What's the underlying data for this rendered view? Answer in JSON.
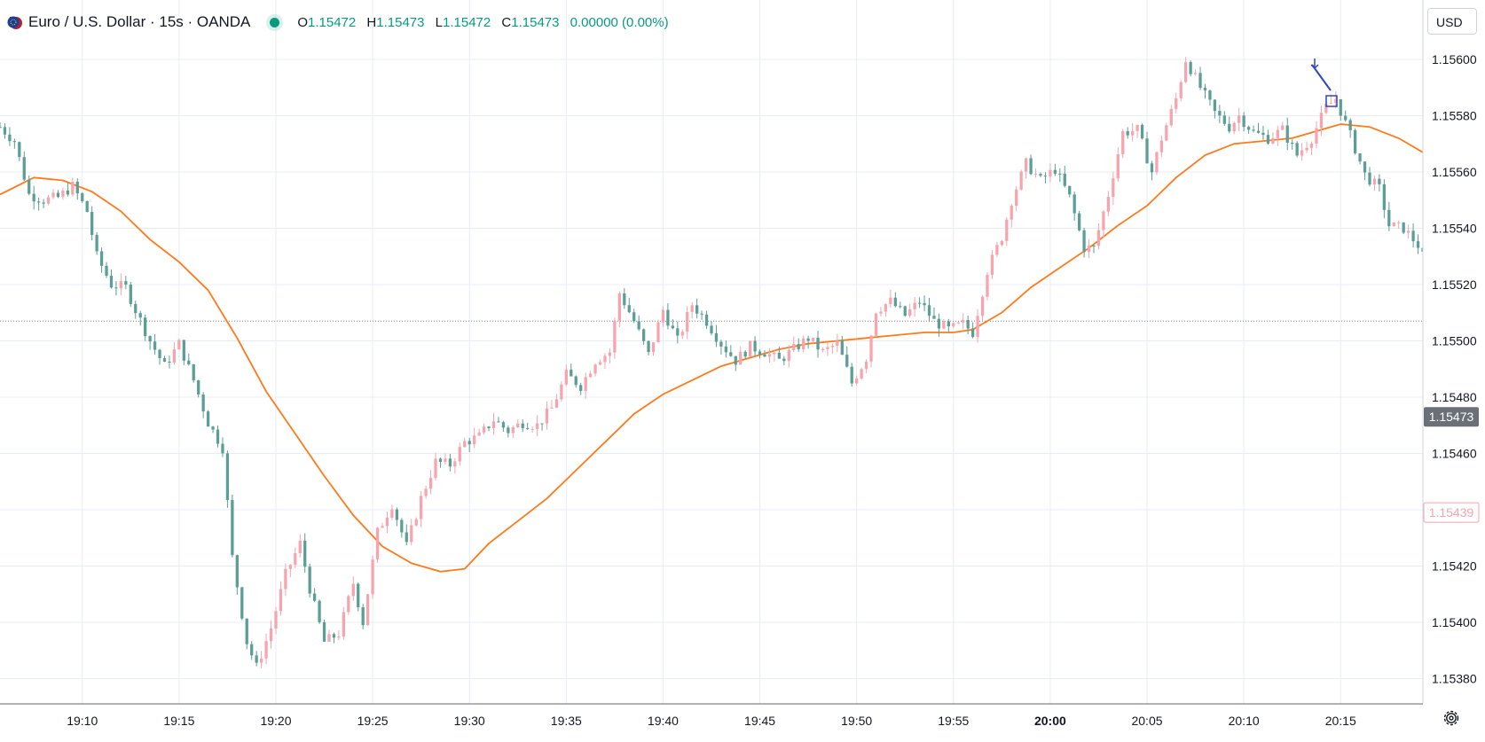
{
  "legend": {
    "symbol": "Euro / U.S. Dollar · 15s · OANDA",
    "open_key": "O",
    "open": "1.15472",
    "high_key": "H",
    "high": "1.15473",
    "low_key": "L",
    "low": "1.15472",
    "close_key": "C",
    "close": "1.15473",
    "change": "0.00000 (0.00%)"
  },
  "currency_button": "USD",
  "colors": {
    "up": "#f7a4ae",
    "down": "#5b9e96",
    "ma": "#ff7a1a",
    "grid": "#e8edf3",
    "accent": "#089981"
  },
  "chart_data": {
    "type": "candlestick",
    "interval": "15s",
    "price_axis": {
      "ticks": [
        "1.15600",
        "1.15580",
        "1.15560",
        "1.15540",
        "1.15520",
        "1.15500",
        "1.15480",
        "1.15460",
        "1.15420",
        "1.15400",
        "1.15380"
      ],
      "range": [
        1.15372,
        1.1561
      ],
      "current_price_label": "1.15473",
      "alert_label": "1.15439",
      "dotted_line_price": 1.15507
    },
    "time_axis": {
      "labels": [
        "19:10",
        "19:15",
        "19:20",
        "19:25",
        "19:30",
        "19:35",
        "19:40",
        "19:45",
        "19:50",
        "19:55",
        "20:00",
        "20:05",
        "20:10",
        "20:15"
      ],
      "bold_label": "20:00",
      "start": "19:05:45",
      "end": "20:19:15"
    },
    "moving_average": [
      [
        "19:05:45",
        1.15552
      ],
      [
        "19:07:30",
        1.15558
      ],
      [
        "19:09:00",
        1.15557
      ],
      [
        "19:10:30",
        1.15553
      ],
      [
        "19:12:00",
        1.15546
      ],
      [
        "19:13:30",
        1.15536
      ],
      [
        "19:15:00",
        1.15528
      ],
      [
        "19:16:30",
        1.15518
      ],
      [
        "19:18:00",
        1.15501
      ],
      [
        "19:19:30",
        1.15482
      ],
      [
        "19:21:00",
        1.15467
      ],
      [
        "19:22:30",
        1.15452
      ],
      [
        "19:24:00",
        1.15438
      ],
      [
        "19:25:30",
        1.15427
      ],
      [
        "19:27:00",
        1.15421
      ],
      [
        "19:28:30",
        1.15418
      ],
      [
        "19:29:45",
        1.15419
      ],
      [
        "19:31:00",
        1.15428
      ],
      [
        "19:32:30",
        1.15436
      ],
      [
        "19:34:00",
        1.15444
      ],
      [
        "19:35:30",
        1.15454
      ],
      [
        "19:37:00",
        1.15464
      ],
      [
        "19:38:30",
        1.15474
      ],
      [
        "19:40:00",
        1.15481
      ],
      [
        "19:41:30",
        1.15486
      ],
      [
        "19:43:00",
        1.15491
      ],
      [
        "19:44:30",
        1.15494
      ],
      [
        "19:46:00",
        1.15497
      ],
      [
        "19:47:30",
        1.15499
      ],
      [
        "19:49:00",
        1.155
      ],
      [
        "19:50:30",
        1.15501
      ],
      [
        "19:52:00",
        1.15502
      ],
      [
        "19:53:30",
        1.15503
      ],
      [
        "19:55:00",
        1.15503
      ],
      [
        "19:56:00",
        1.15504
      ],
      [
        "19:57:30",
        1.1551
      ],
      [
        "19:59:00",
        1.15519
      ],
      [
        "20:00:30",
        1.15526
      ],
      [
        "20:02:00",
        1.15533
      ],
      [
        "20:03:30",
        1.15541
      ],
      [
        "20:05:00",
        1.15548
      ],
      [
        "20:06:30",
        1.15558
      ],
      [
        "20:08:00",
        1.15566
      ],
      [
        "20:09:30",
        1.1557
      ],
      [
        "20:11:00",
        1.15571
      ],
      [
        "20:12:30",
        1.15572
      ],
      [
        "20:14:00",
        1.15575
      ],
      [
        "20:15:00",
        1.15577
      ],
      [
        "20:16:30",
        1.15576
      ],
      [
        "20:18:00",
        1.15572
      ],
      [
        "20:19:15",
        1.15567
      ]
    ],
    "candle_anchors": [
      [
        "19:05:45",
        1.15576
      ],
      [
        "19:06:30",
        1.15571
      ],
      [
        "19:07:15",
        1.15552
      ],
      [
        "19:08:00",
        1.1555
      ],
      [
        "19:08:45",
        1.15551
      ],
      [
        "19:09:30",
        1.15555
      ],
      [
        "19:10:15",
        1.15546
      ],
      [
        "19:10:45",
        1.1553
      ],
      [
        "19:11:30",
        1.1552
      ],
      [
        "19:12:15",
        1.15519
      ],
      [
        "19:12:45",
        1.15511
      ],
      [
        "19:13:30",
        1.155
      ],
      [
        "19:14:15",
        1.15491
      ],
      [
        "19:15:00",
        1.15499
      ],
      [
        "19:15:45",
        1.15486
      ],
      [
        "19:16:30",
        1.15471
      ],
      [
        "19:17:15",
        1.15462
      ],
      [
        "19:17:45",
        1.15423
      ],
      [
        "19:18:30",
        1.15393
      ],
      [
        "19:19:00",
        1.15384
      ],
      [
        "19:19:45",
        1.15398
      ],
      [
        "19:20:30",
        1.15417
      ],
      [
        "19:21:15",
        1.15428
      ],
      [
        "19:21:45",
        1.15412
      ],
      [
        "19:22:30",
        1.15393
      ],
      [
        "19:23:15",
        1.15396
      ],
      [
        "19:24:00",
        1.15414
      ],
      [
        "19:24:30",
        1.154
      ],
      [
        "19:25:15",
        1.15432
      ],
      [
        "19:26:00",
        1.15442
      ],
      [
        "19:26:45",
        1.15427
      ],
      [
        "19:27:30",
        1.15444
      ],
      [
        "19:28:15",
        1.15457
      ],
      [
        "19:29:00",
        1.15456
      ],
      [
        "19:29:45",
        1.15464
      ],
      [
        "19:30:30",
        1.15466
      ],
      [
        "19:31:15",
        1.15472
      ],
      [
        "19:32:00",
        1.15468
      ],
      [
        "19:32:45",
        1.15471
      ],
      [
        "19:33:30",
        1.1547
      ],
      [
        "19:34:15",
        1.15476
      ],
      [
        "19:35:00",
        1.15488
      ],
      [
        "19:35:45",
        1.15484
      ],
      [
        "19:36:30",
        1.15493
      ],
      [
        "19:37:15",
        1.15496
      ],
      [
        "19:37:45",
        1.15517
      ],
      [
        "19:38:30",
        1.15507
      ],
      [
        "19:39:15",
        1.15495
      ],
      [
        "19:40:00",
        1.15511
      ],
      [
        "19:40:45",
        1.155
      ],
      [
        "19:41:30",
        1.15513
      ],
      [
        "19:42:15",
        1.15507
      ],
      [
        "19:43:00",
        1.15499
      ],
      [
        "19:43:45",
        1.15493
      ],
      [
        "19:44:30",
        1.15498
      ],
      [
        "19:45:15",
        1.15496
      ],
      [
        "19:46:00",
        1.15493
      ],
      [
        "19:46:45",
        1.15497
      ],
      [
        "19:47:30",
        1.15501
      ],
      [
        "19:48:15",
        1.15496
      ],
      [
        "19:49:00",
        1.15499
      ],
      [
        "19:49:45",
        1.15485
      ],
      [
        "19:50:30",
        1.15494
      ],
      [
        "19:51:00",
        1.15511
      ],
      [
        "19:51:45",
        1.15514
      ],
      [
        "19:52:30",
        1.15509
      ],
      [
        "19:53:15",
        1.15514
      ],
      [
        "19:54:00",
        1.15507
      ],
      [
        "19:54:45",
        1.15504
      ],
      [
        "19:55:30",
        1.15506
      ],
      [
        "19:56:00",
        1.15503
      ],
      [
        "19:56:45",
        1.15525
      ],
      [
        "19:57:30",
        1.15537
      ],
      [
        "19:58:00",
        1.1555
      ],
      [
        "19:58:45",
        1.15563
      ],
      [
        "19:59:30",
        1.15557
      ],
      [
        "20:00:15",
        1.15561
      ],
      [
        "20:01:00",
        1.15551
      ],
      [
        "20:01:45",
        1.15533
      ],
      [
        "20:02:15",
        1.15533
      ],
      [
        "20:03:00",
        1.15552
      ],
      [
        "20:03:45",
        1.15574
      ],
      [
        "20:04:30",
        1.15575
      ],
      [
        "20:05:15",
        1.1556
      ],
      [
        "20:05:45",
        1.15572
      ],
      [
        "20:06:30",
        1.15586
      ],
      [
        "20:07:00",
        1.156
      ],
      [
        "20:07:45",
        1.1559
      ],
      [
        "20:08:30",
        1.15581
      ],
      [
        "20:09:15",
        1.15576
      ],
      [
        "20:09:45",
        1.1558
      ],
      [
        "20:10:30",
        1.15574
      ],
      [
        "20:11:15",
        1.15572
      ],
      [
        "20:12:00",
        1.15575
      ],
      [
        "20:12:45",
        1.15566
      ],
      [
        "20:13:30",
        1.15572
      ],
      [
        "20:14:15",
        1.15583
      ],
      [
        "20:14:45",
        1.15586
      ],
      [
        "20:15:30",
        1.15573
      ],
      [
        "20:16:15",
        1.15559
      ],
      [
        "20:17:00",
        1.15554
      ],
      [
        "20:17:30",
        1.15541
      ],
      [
        "20:18:15",
        1.1554
      ],
      [
        "20:19:00",
        1.15534
      ],
      [
        "20:19:15",
        1.1553
      ]
    ]
  }
}
